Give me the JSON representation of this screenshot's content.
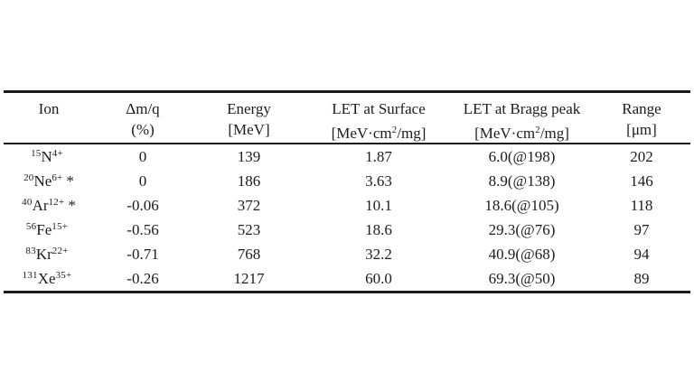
{
  "colors": {
    "background": "#ffffff",
    "text": "#1c1c1c",
    "rule": "#1a1a1a"
  },
  "table": {
    "columns": [
      {
        "name": "Ion",
        "unit": ""
      },
      {
        "name": "Δm/q",
        "unit": "(%)"
      },
      {
        "name": "Energy",
        "unit": "[MeV]"
      },
      {
        "name": "LET at Surface",
        "unit_pre": "[MeV·cm",
        "unit_sup": "2",
        "unit_suf": "/mg]"
      },
      {
        "name": "LET at Bragg peak",
        "unit_pre": "[MeV·cm",
        "unit_sup": "2",
        "unit_suf": "/mg]"
      },
      {
        "name": "Range",
        "unit": "[μm]"
      }
    ],
    "rows": [
      {
        "ion": {
          "mass": "15",
          "element": "N",
          "charge": "4+",
          "note": ""
        },
        "dm_q": "0",
        "energy": "139",
        "let_surface": "1.87",
        "let_bragg": "6.0(@198)",
        "range": "202"
      },
      {
        "ion": {
          "mass": "20",
          "element": "Ne",
          "charge": "6+",
          "note": "*"
        },
        "dm_q": "0",
        "energy": "186",
        "let_surface": "3.63",
        "let_bragg": "8.9(@138)",
        "range": "146"
      },
      {
        "ion": {
          "mass": "40",
          "element": "Ar",
          "charge": "12+",
          "note": "*"
        },
        "dm_q": "-0.06",
        "energy": "372",
        "let_surface": "10.1",
        "let_bragg": "18.6(@105)",
        "range": "118"
      },
      {
        "ion": {
          "mass": "56",
          "element": "Fe",
          "charge": "15+",
          "note": ""
        },
        "dm_q": "-0.56",
        "energy": "523",
        "let_surface": "18.6",
        "let_bragg": "29.3(@76)",
        "range": "97"
      },
      {
        "ion": {
          "mass": "83",
          "element": "Kr",
          "charge": "22+",
          "note": ""
        },
        "dm_q": "-0.71",
        "energy": "768",
        "let_surface": "32.2",
        "let_bragg": "40.9(@68)",
        "range": "94"
      },
      {
        "ion": {
          "mass": "131",
          "element": "Xe",
          "charge": "35+",
          "note": ""
        },
        "dm_q": "-0.26",
        "energy": "1217",
        "let_surface": "60.0",
        "let_bragg": "69.3(@50)",
        "range": "89"
      }
    ]
  }
}
